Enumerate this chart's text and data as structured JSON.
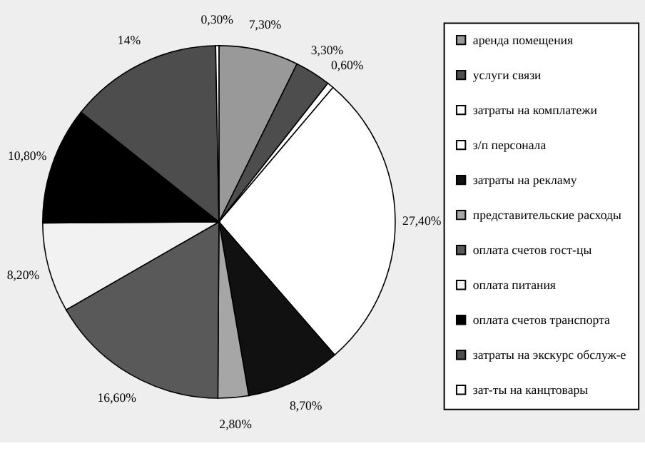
{
  "chart_data": {
    "type": "pie",
    "categories": [
      "аренда помещения",
      "услуги связи",
      "затраты на комплатежи",
      "з/п персонала",
      "затраты на рекламу",
      "представительские расходы",
      "оплата счетов гост-цы",
      "оплата питания",
      "оплата счетов транспорта",
      "затраты на экскурс обслуж-е",
      "зат-ты на канцтовары"
    ],
    "values": [
      7.3,
      3.3,
      0.6,
      27.4,
      8.7,
      2.8,
      16.6,
      8.2,
      10.8,
      14,
      0.3
    ],
    "colors": [
      "#999999",
      "#4d4d4d",
      "#ffffff",
      "#ffffff",
      "#111111",
      "#a6a6a6",
      "#595959",
      "#f2f2f2",
      "#000000",
      "#4d4d4d",
      "#ffffff"
    ],
    "value_labels": [
      "7,30%",
      "3,30%",
      "0,60%",
      "27,40%",
      "8,70%",
      "2,80%",
      "16,60%",
      "8,20%",
      "10,80%",
      "14%",
      "0,30%"
    ],
    "legend": "right"
  }
}
